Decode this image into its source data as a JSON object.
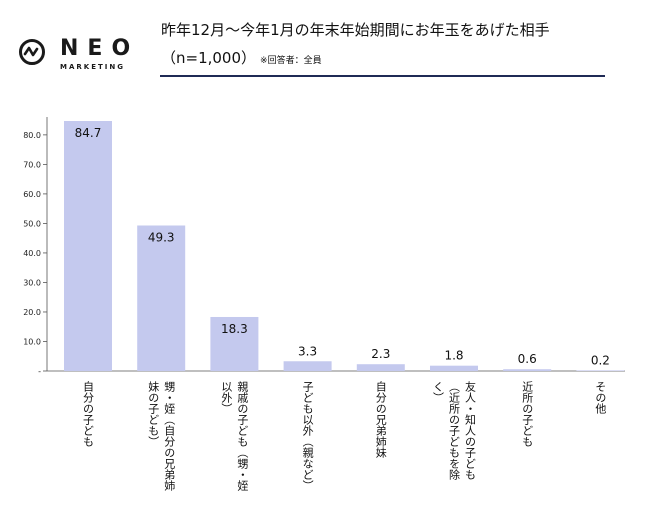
{
  "logo": {
    "wordmark": "NEO",
    "sub": "MARKETING"
  },
  "header": {
    "title": "昨年12月～今年1月の年末年始期間にお年玉をあげた相手",
    "subtitle": "（n=1,000）",
    "note": "※回答者：全員"
  },
  "chart_data": {
    "type": "bar",
    "categories": [
      [
        "自分の子ども"
      ],
      [
        "甥・姪（自分の兄弟姉",
        "妹の子ども）"
      ],
      [
        "親戚の子ども（甥・姪",
        "以外）"
      ],
      [
        "子ども以外（親など）"
      ],
      [
        "自分の兄弟姉妹"
      ],
      [
        "友人・知人の子ども",
        "（近所の子どもを除",
        "く）"
      ],
      [
        "近所の子ども"
      ],
      [
        "その他"
      ]
    ],
    "values": [
      84.7,
      49.3,
      18.3,
      3.3,
      2.3,
      1.8,
      0.6,
      0.2
    ],
    "value_labels": [
      "84.7",
      "49.3",
      "18.3",
      "3.3",
      "2.3",
      "1.8",
      "0.6",
      "0.2"
    ],
    "yticks": [
      "-",
      "10.0",
      "20.0",
      "30.0",
      "40.0",
      "50.0",
      "60.0",
      "70.0",
      "80.0"
    ],
    "ylim": [
      0,
      84.7
    ],
    "bar_color": "#c4c9ee",
    "grid": false
  }
}
